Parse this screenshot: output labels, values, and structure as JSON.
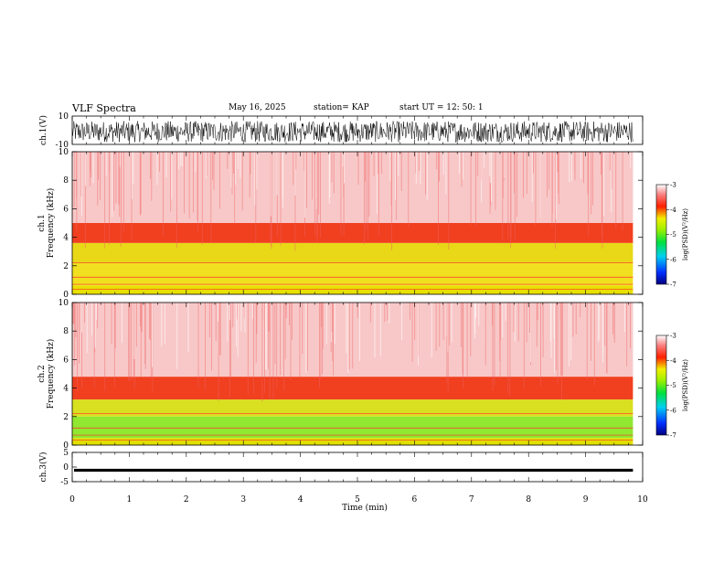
{
  "header": {
    "title": "VLF Spectra",
    "date": "May 16, 2025",
    "station": "station= KAP",
    "start": "start  UT  =   12: 50: 1"
  },
  "chart_data": [
    {
      "type": "line",
      "name": "ch1-waveform",
      "ylabel": "ch.1(V)",
      "ylim": [
        -10,
        10
      ],
      "yticks": [
        "10",
        "-10"
      ],
      "xlim": [
        0,
        10
      ],
      "description_of_values": "dense noisy waveform approx between -8 and 7 V"
    },
    {
      "type": "heatmap",
      "name": "ch1-spectrogram",
      "ylabel": "ch.1  Frequency  (kHz)",
      "ylabel_ch": "ch.1",
      "ylabel_freq": "Frequency  (kHz)",
      "ylim": [
        0,
        10
      ],
      "yticks": [
        "0",
        "2",
        "4",
        "6",
        "8",
        "10"
      ],
      "xlim": [
        0,
        9.83
      ],
      "bands": [
        {
          "from": 0,
          "to": 0.6,
          "color": "#e8e000"
        },
        {
          "from": 0.6,
          "to": 2.2,
          "color": "#f0e020"
        },
        {
          "from": 2.2,
          "to": 3.6,
          "color": "#e8d818"
        },
        {
          "from": 3.6,
          "to": 5.0,
          "color": "#f04020"
        },
        {
          "from": 5.0,
          "to": 10,
          "color": "#f8c8c8"
        }
      ],
      "colorbar": {
        "label": "log(PSD)(V²/Hz)",
        "ticks": [
          "-3",
          "-4",
          "-5",
          "-6",
          "-7"
        ],
        "range": [
          -7,
          -3
        ]
      }
    },
    {
      "type": "heatmap",
      "name": "ch2-spectrogram",
      "ylabel": "ch.2  Frequency  (kHz)",
      "ylabel_ch": "ch.2",
      "ylabel_freq": "Frequency  (kHz)",
      "ylim": [
        0,
        10
      ],
      "yticks": [
        "0",
        "2",
        "4",
        "6",
        "8",
        "10"
      ],
      "xlim": [
        0,
        9.83
      ],
      "bands": [
        {
          "from": 0,
          "to": 0.5,
          "color": "#e0e000"
        },
        {
          "from": 0.5,
          "to": 2.0,
          "color": "#90e830"
        },
        {
          "from": 2.0,
          "to": 3.2,
          "color": "#d8e020"
        },
        {
          "from": 3.2,
          "to": 4.8,
          "color": "#f04020"
        },
        {
          "from": 4.8,
          "to": 10,
          "color": "#f8c8c8"
        }
      ],
      "colorbar": {
        "label": "log(PSD)(V²/Hz)",
        "ticks": [
          "-3",
          "-4",
          "-5",
          "-6",
          "-7"
        ],
        "range": [
          -7,
          -3
        ]
      }
    },
    {
      "type": "line",
      "name": "ch3-waveform",
      "ylabel": "ch.3(V)",
      "ylim": [
        -5,
        5
      ],
      "yticks": [
        "5",
        "0",
        "-5"
      ],
      "xlim": [
        0,
        10
      ],
      "description_of_values": "thick band around -1 V"
    }
  ],
  "xaxis": {
    "label": "Time  (min)",
    "ticks": [
      "0",
      "1",
      "2",
      "3",
      "4",
      "5",
      "6",
      "7",
      "8",
      "9",
      "10"
    ],
    "range": [
      0,
      10
    ]
  }
}
